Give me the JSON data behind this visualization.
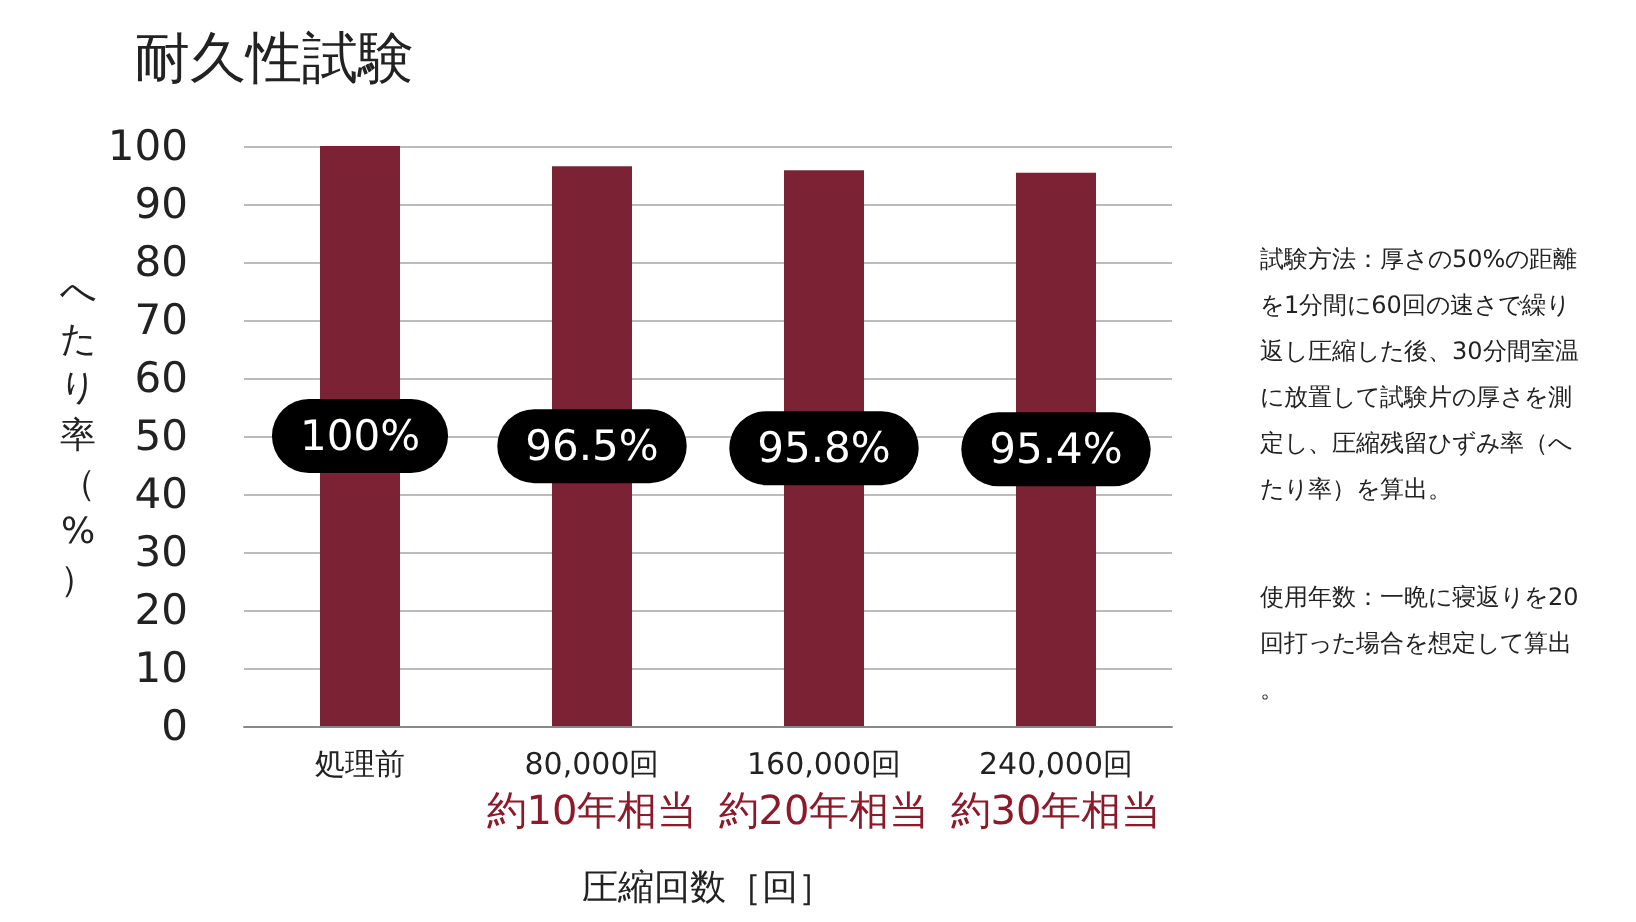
{
  "chart_data": {
    "type": "bar",
    "title": "耐久性試験",
    "xlabel": "圧縮回数［回］",
    "ylabel": "へたり率（%）",
    "categories": [
      "処理前",
      "80,000回約10年相当",
      "160,000回約20年相当",
      "240,000回約30年相当"
    ],
    "values": [
      100,
      96.5,
      95.8,
      95.4
    ],
    "color": "#7b2334",
    "value_labels": [
      "100%",
      "96.5%",
      "95.8%",
      "95.4%"
    ],
    "ylim": [
      0,
      100
    ],
    "yticks": [
      0,
      10,
      20,
      30,
      40,
      50,
      60,
      70,
      80,
      90,
      100
    ],
    "grid": "y",
    "annotations": [
      "試験方法：厚さの50%の距離を1分間に60回の速さで繰り返し圧縮した後、30分間室温に放置して試験片の厚さを測定し、圧縮残留ひずみ率（へたり率）を算出。",
      "使用年数：一晩に寝返りを20回打った場合を想定して算出。"
    ]
  }
}
